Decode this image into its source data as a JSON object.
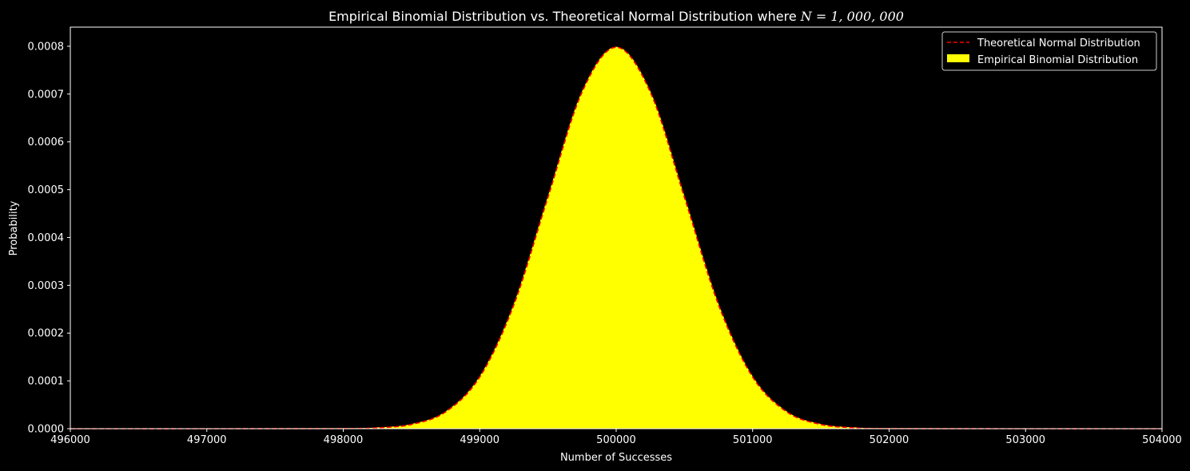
{
  "chart_data": {
    "type": "area",
    "title_text": "Empirical Binomial Distribution vs. Theoretical Normal Distribution where ",
    "title_math": "N = 1, 000, 000",
    "xlabel": "Number of Successes",
    "ylabel": "Probability",
    "xlim": [
      496000,
      504000
    ],
    "ylim": [
      0,
      0.00084
    ],
    "x_ticks": [
      496000,
      497000,
      498000,
      499000,
      500000,
      501000,
      502000,
      503000,
      504000
    ],
    "x_tick_labels": [
      "496000",
      "497000",
      "498000",
      "499000",
      "500000",
      "501000",
      "502000",
      "503000",
      "504000"
    ],
    "y_ticks": [
      0,
      0.0001,
      0.0002,
      0.0003,
      0.0004,
      0.0005,
      0.0006,
      0.0007,
      0.0008
    ],
    "y_tick_labels": [
      "0.0000",
      "0.0001",
      "0.0002",
      "0.0003",
      "0.0004",
      "0.0005",
      "0.0006",
      "0.0007",
      "0.0008"
    ],
    "grid": false,
    "legend_position": "top-right",
    "series": [
      {
        "name": "Theoretical Normal Distribution",
        "kind": "dashed-line",
        "color": "#ff0000",
        "x": [
          496000,
          497000,
          498000,
          498250,
          498500,
          498750,
          499000,
          499250,
          499500,
          499750,
          500000,
          500250,
          500500,
          500750,
          501000,
          501250,
          501500,
          501750,
          502000,
          503000,
          504000
        ],
        "values": [
          0,
          0,
          3e-07,
          1.8e-06,
          8.9e-06,
          3.51e-05,
          0.000108,
          0.000259,
          0.000484,
          0.000704,
          0.000798,
          0.000704,
          0.000484,
          0.000259,
          0.000108,
          3.51e-05,
          8.9e-06,
          1.8e-06,
          3e-07,
          0,
          0
        ]
      },
      {
        "name": "Empirical Binomial Distribution",
        "kind": "filled-area",
        "color": "#ffff00",
        "x": [
          496000,
          497000,
          498000,
          498250,
          498500,
          498750,
          499000,
          499250,
          499500,
          499750,
          500000,
          500250,
          500500,
          500750,
          501000,
          501250,
          501500,
          501750,
          502000,
          503000,
          504000
        ],
        "values": [
          0,
          0,
          3e-07,
          1.8e-06,
          8.9e-06,
          3.51e-05,
          0.000108,
          0.000259,
          0.000484,
          0.000704,
          0.000798,
          0.000704,
          0.000484,
          0.000259,
          0.000108,
          3.51e-05,
          8.9e-06,
          1.8e-06,
          3e-07,
          0,
          0
        ]
      }
    ]
  }
}
